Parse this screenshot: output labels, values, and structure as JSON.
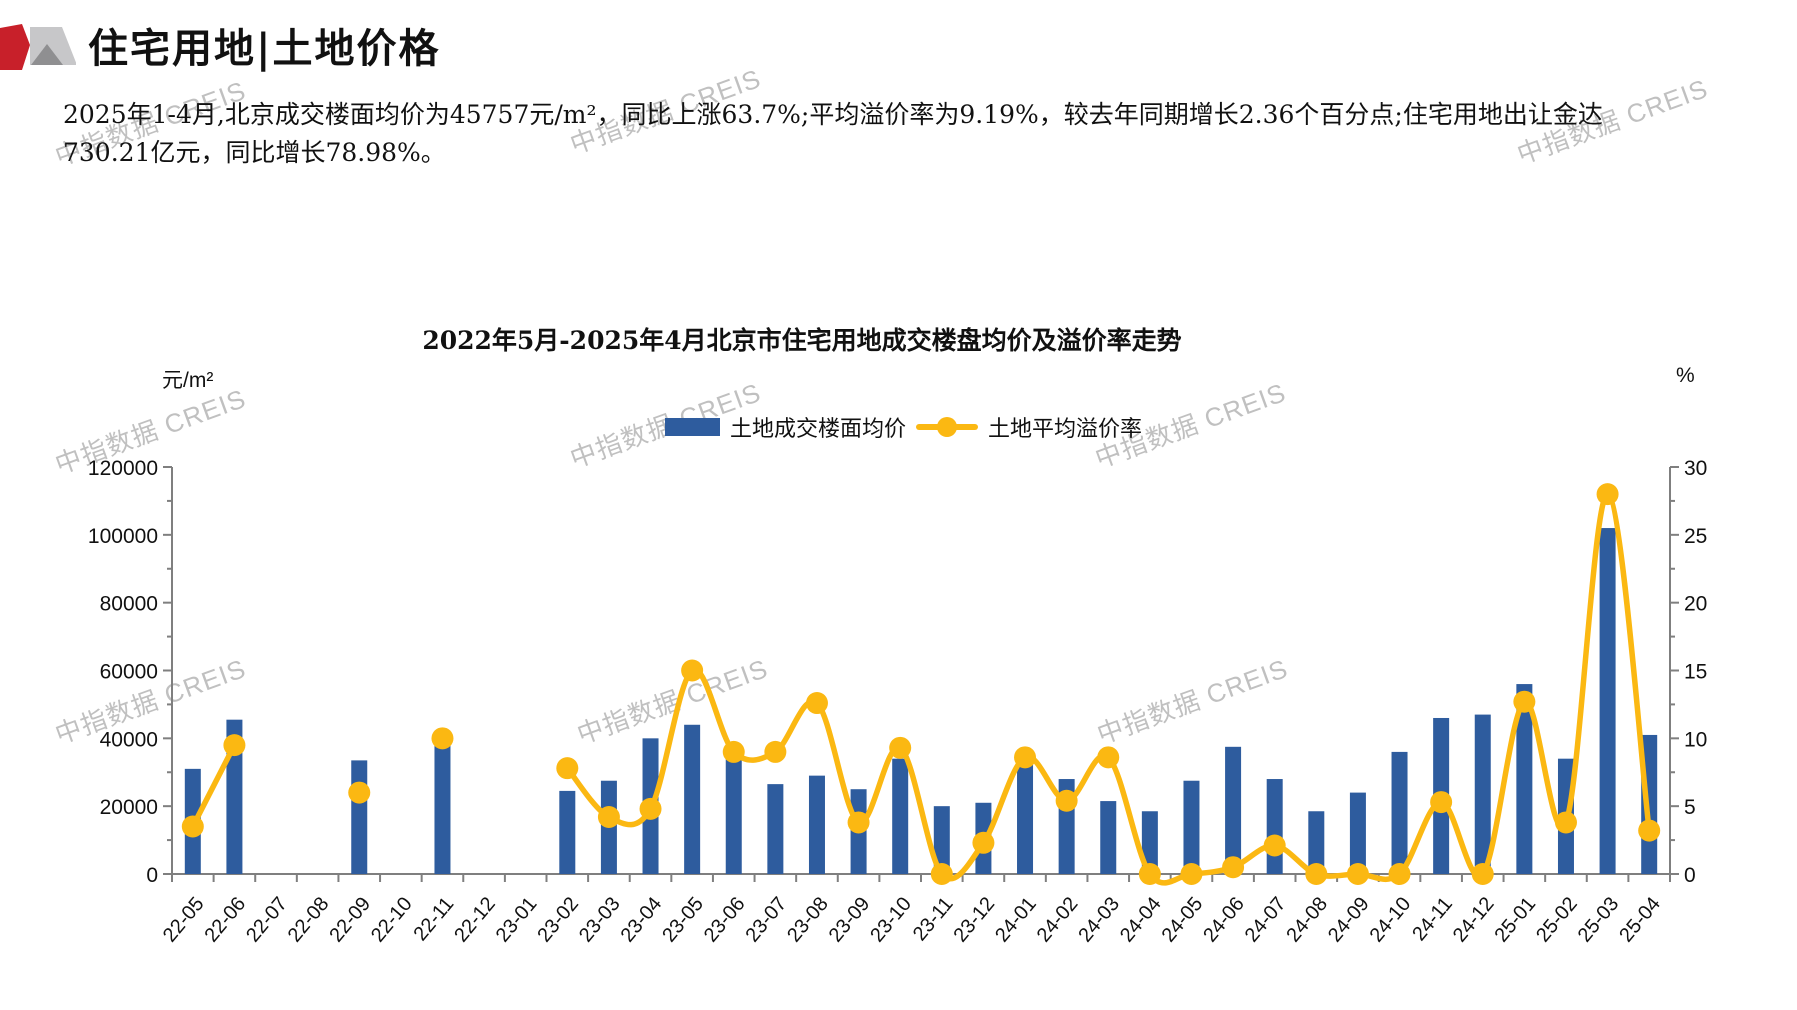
{
  "header": {
    "title": "住宅用地|土地价格"
  },
  "summary_text": "2025年1-4月,北京成交楼面均价为45757元/m²，同比上涨63.7%;平均溢价率为9.19%，较去年同期增长2.36个百分点;住宅用地出让金达\n730.21亿元，同比增长78.98%。",
  "watermark": {
    "text": "中指数据 CREIS"
  },
  "logo_colors": {
    "red": "#C8202A",
    "light_gray": "#C7C7C9",
    "dark_gray": "#8F8F91"
  },
  "chart_data": {
    "type": "bar",
    "title": "2022年5月-2025年4月北京市住宅用地成交楼盘均价及溢价率走势",
    "legend_position": "top-center",
    "grid": false,
    "axis_color": "#7f7f7f",
    "left_axis": {
      "unit": "元/m²",
      "min": 0,
      "max": 120000,
      "tick_step": 20000,
      "minor_step": 10000,
      "tick_labels": [
        "0",
        "20000",
        "40000",
        "60000",
        "80000",
        "100000",
        "120000"
      ]
    },
    "right_axis": {
      "unit": "%",
      "min": 0,
      "max": 30,
      "tick_step": 5,
      "minor_step": 2.5,
      "tick_labels": [
        "0",
        "5",
        "10",
        "15",
        "20",
        "25",
        "30"
      ]
    },
    "categories": [
      "22-05",
      "22-06",
      "22-07",
      "22-08",
      "22-09",
      "22-10",
      "22-11",
      "22-12",
      "23-01",
      "23-02",
      "23-03",
      "23-04",
      "23-05",
      "23-06",
      "23-07",
      "23-08",
      "23-09",
      "23-10",
      "23-11",
      "23-12",
      "24-01",
      "24-02",
      "24-03",
      "24-04",
      "24-05",
      "24-06",
      "24-07",
      "24-08",
      "24-09",
      "24-10",
      "24-11",
      "24-12",
      "25-01",
      "25-02",
      "25-03",
      "25-04"
    ],
    "series": [
      {
        "name": "土地成交楼面均价",
        "type": "bar",
        "axis": "left",
        "color": "#2E5C9E",
        "values": [
          31000,
          45500,
          null,
          null,
          33500,
          null,
          38000,
          null,
          null,
          24500,
          27500,
          40000,
          44000,
          34000,
          26500,
          29000,
          25000,
          34000,
          20000,
          21000,
          33000,
          28000,
          21500,
          18500,
          27500,
          37500,
          28000,
          18500,
          24000,
          36000,
          46000,
          47000,
          56000,
          34000,
          102000,
          41000
        ]
      },
      {
        "name": "土地平均溢价率",
        "type": "line",
        "axis": "right",
        "color": "#FBB812",
        "values": [
          3.5,
          9.5,
          null,
          null,
          6.0,
          null,
          10.0,
          null,
          null,
          7.8,
          4.2,
          4.8,
          15.0,
          9.0,
          9.0,
          12.6,
          3.8,
          9.3,
          0,
          2.3,
          8.6,
          5.4,
          8.6,
          0,
          0,
          0.5,
          2.1,
          0,
          0,
          0,
          5.3,
          0,
          12.7,
          3.8,
          28.0,
          3.2
        ]
      }
    ]
  }
}
